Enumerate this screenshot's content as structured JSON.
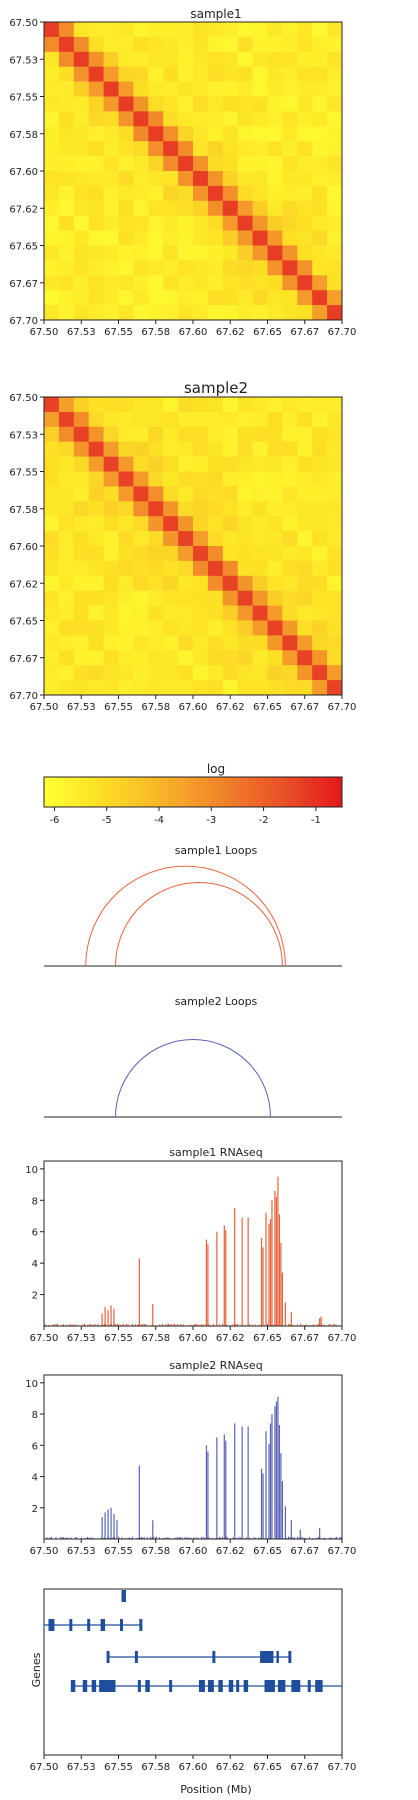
{
  "panels": {
    "hic1_title": "sample1",
    "hic2_title": "sample2",
    "colorbar_label": "log",
    "loops1_title": "sample1 Loops",
    "loops2_title": "sample2 Loops",
    "rna1_title": "sample1 RNAseq",
    "rna2_title": "sample2 RNAseq",
    "genes_ylabel": "Genes",
    "genes_xlabel": "Position (Mb)"
  },
  "position_ticks": [
    "67.50",
    "67.53",
    "67.55",
    "67.58",
    "67.60",
    "67.62",
    "67.65",
    "67.67",
    "67.70"
  ],
  "colorbar_ticks": [
    "-6",
    "-5",
    "-4",
    "-3",
    "-2",
    "-1"
  ],
  "rna_yticks": [
    "2",
    "4",
    "6",
    "8",
    "10"
  ],
  "colors": {
    "sample1": "#e8623a",
    "sample2": "#5a63b8",
    "genes": "#1f4f9c",
    "colormap": [
      "#ffff33",
      "#fde225",
      "#f9c128",
      "#f49b2a",
      "#ee7329",
      "#e84a27",
      "#e31a1c"
    ]
  },
  "chart_data": [
    {
      "type": "heatmap",
      "title": "sample1",
      "x_range": [
        67.5,
        67.7
      ],
      "y_range": [
        67.5,
        67.7
      ],
      "bins": 20,
      "value_range_log": [
        -6.2,
        -0.5
      ],
      "diagonal_log": -1.2,
      "background_log": -5.6
    },
    {
      "type": "heatmap",
      "title": "sample2",
      "x_range": [
        67.5,
        67.7
      ],
      "y_range": [
        67.5,
        67.7
      ],
      "bins": 20,
      "value_range_log": [
        -6.2,
        -0.5
      ],
      "diagonal_log": -1.3,
      "background_log": -5.5
    },
    {
      "type": "arc",
      "title": "sample1 Loops",
      "x_range": [
        67.5,
        67.7
      ],
      "loops": [
        [
          67.528,
          67.662
        ],
        [
          67.548,
          67.66
        ]
      ]
    },
    {
      "type": "arc",
      "title": "sample2 Loops",
      "x_range": [
        67.5,
        67.7
      ],
      "loops": [
        [
          67.548,
          67.652
        ]
      ]
    },
    {
      "type": "bar",
      "title": "sample1 RNAseq",
      "x_range": [
        67.5,
        67.7
      ],
      "ylim": [
        0,
        10.5
      ],
      "peaks": [
        {
          "x": 67.539,
          "y": 0.8
        },
        {
          "x": 67.541,
          "y": 1.2
        },
        {
          "x": 67.543,
          "y": 1.0
        },
        {
          "x": 67.545,
          "y": 1.3
        },
        {
          "x": 67.547,
          "y": 1.1
        },
        {
          "x": 67.564,
          "y": 4.3
        },
        {
          "x": 67.573,
          "y": 1.4
        },
        {
          "x": 67.609,
          "y": 5.5
        },
        {
          "x": 67.61,
          "y": 5.2
        },
        {
          "x": 67.616,
          "y": 6.0
        },
        {
          "x": 67.621,
          "y": 6.4
        },
        {
          "x": 67.622,
          "y": 6.1
        },
        {
          "x": 67.628,
          "y": 7.5
        },
        {
          "x": 67.633,
          "y": 6.9
        },
        {
          "x": 67.637,
          "y": 6.9
        },
        {
          "x": 67.646,
          "y": 5.6
        },
        {
          "x": 67.647,
          "y": 5.0
        },
        {
          "x": 67.649,
          "y": 7.2
        },
        {
          "x": 67.651,
          "y": 6.5
        },
        {
          "x": 67.652,
          "y": 6.8
        },
        {
          "x": 67.653,
          "y": 8.0
        },
        {
          "x": 67.655,
          "y": 8.6
        },
        {
          "x": 67.656,
          "y": 8.2
        },
        {
          "x": 67.657,
          "y": 9.5
        },
        {
          "x": 67.658,
          "y": 7.1
        },
        {
          "x": 67.659,
          "y": 5.3
        },
        {
          "x": 67.66,
          "y": 3.4
        },
        {
          "x": 67.662,
          "y": 1.5
        },
        {
          "x": 67.666,
          "y": 0.9
        },
        {
          "x": 67.685,
          "y": 0.5
        },
        {
          "x": 67.686,
          "y": 0.6
        }
      ]
    },
    {
      "type": "bar",
      "title": "sample2 RNAseq",
      "x_range": [
        67.5,
        67.7
      ],
      "ylim": [
        0,
        10.5
      ],
      "peaks": [
        {
          "x": 67.539,
          "y": 1.4
        },
        {
          "x": 67.541,
          "y": 1.7
        },
        {
          "x": 67.543,
          "y": 1.9
        },
        {
          "x": 67.545,
          "y": 2.0
        },
        {
          "x": 67.547,
          "y": 1.6
        },
        {
          "x": 67.549,
          "y": 1.2
        },
        {
          "x": 67.564,
          "y": 4.7
        },
        {
          "x": 67.573,
          "y": 1.2
        },
        {
          "x": 67.609,
          "y": 6.0
        },
        {
          "x": 67.61,
          "y": 5.6
        },
        {
          "x": 67.616,
          "y": 6.5
        },
        {
          "x": 67.621,
          "y": 6.7
        },
        {
          "x": 67.622,
          "y": 6.3
        },
        {
          "x": 67.628,
          "y": 7.4
        },
        {
          "x": 67.633,
          "y": 7.2
        },
        {
          "x": 67.637,
          "y": 7.2
        },
        {
          "x": 67.646,
          "y": 4.5
        },
        {
          "x": 67.647,
          "y": 4.2
        },
        {
          "x": 67.649,
          "y": 6.9
        },
        {
          "x": 67.651,
          "y": 6.1
        },
        {
          "x": 67.652,
          "y": 7.4
        },
        {
          "x": 67.653,
          "y": 8.0
        },
        {
          "x": 67.655,
          "y": 8.5
        },
        {
          "x": 67.656,
          "y": 8.8
        },
        {
          "x": 67.657,
          "y": 9.1
        },
        {
          "x": 67.658,
          "y": 7.3
        },
        {
          "x": 67.659,
          "y": 5.5
        },
        {
          "x": 67.66,
          "y": 3.7
        },
        {
          "x": 67.662,
          "y": 2.1
        },
        {
          "x": 67.666,
          "y": 1.2
        },
        {
          "x": 67.672,
          "y": 0.6
        },
        {
          "x": 67.685,
          "y": 0.7
        }
      ]
    },
    {
      "type": "genes",
      "x_range": [
        67.5,
        67.7
      ],
      "genes": [
        {
          "row": 0,
          "start": 67.552,
          "end": 67.555,
          "exons": [
            [
              67.552,
              67.555
            ]
          ]
        },
        {
          "row": 1,
          "start": 67.5,
          "end": 67.566,
          "exons": [
            [
              67.503,
              67.507
            ],
            [
              67.517,
              67.519
            ],
            [
              67.529,
              67.531
            ],
            [
              67.538,
              67.541
            ],
            [
              67.551,
              67.553
            ],
            [
              67.564,
              67.566
            ]
          ]
        },
        {
          "row": 2,
          "start": 67.542,
          "end": 67.665,
          "exons": [
            [
              67.542,
              67.544
            ],
            [
              67.561,
              67.563
            ],
            [
              67.613,
              67.615
            ],
            [
              67.645,
              67.654
            ],
            [
              67.656,
              67.657
            ],
            [
              67.664,
              67.666
            ]
          ]
        },
        {
          "row": 3,
          "start": 67.518,
          "end": 67.7,
          "exons": [
            [
              67.518,
              67.521
            ],
            [
              67.526,
              67.529
            ],
            [
              67.532,
              67.535
            ],
            [
              67.537,
              67.548
            ],
            [
              67.563,
              67.565
            ],
            [
              67.568,
              67.571
            ],
            [
              67.584,
              67.586
            ],
            [
              67.604,
              67.608
            ],
            [
              67.61,
              67.614
            ],
            [
              67.617,
              67.62
            ],
            [
              67.624,
              67.627
            ],
            [
              67.629,
              67.631
            ],
            [
              67.634,
              67.637
            ],
            [
              67.648,
              67.655
            ],
            [
              67.657,
              67.662
            ],
            [
              67.666,
              67.672
            ],
            [
              67.677,
              67.679
            ],
            [
              67.682,
              67.687
            ]
          ]
        }
      ]
    }
  ]
}
